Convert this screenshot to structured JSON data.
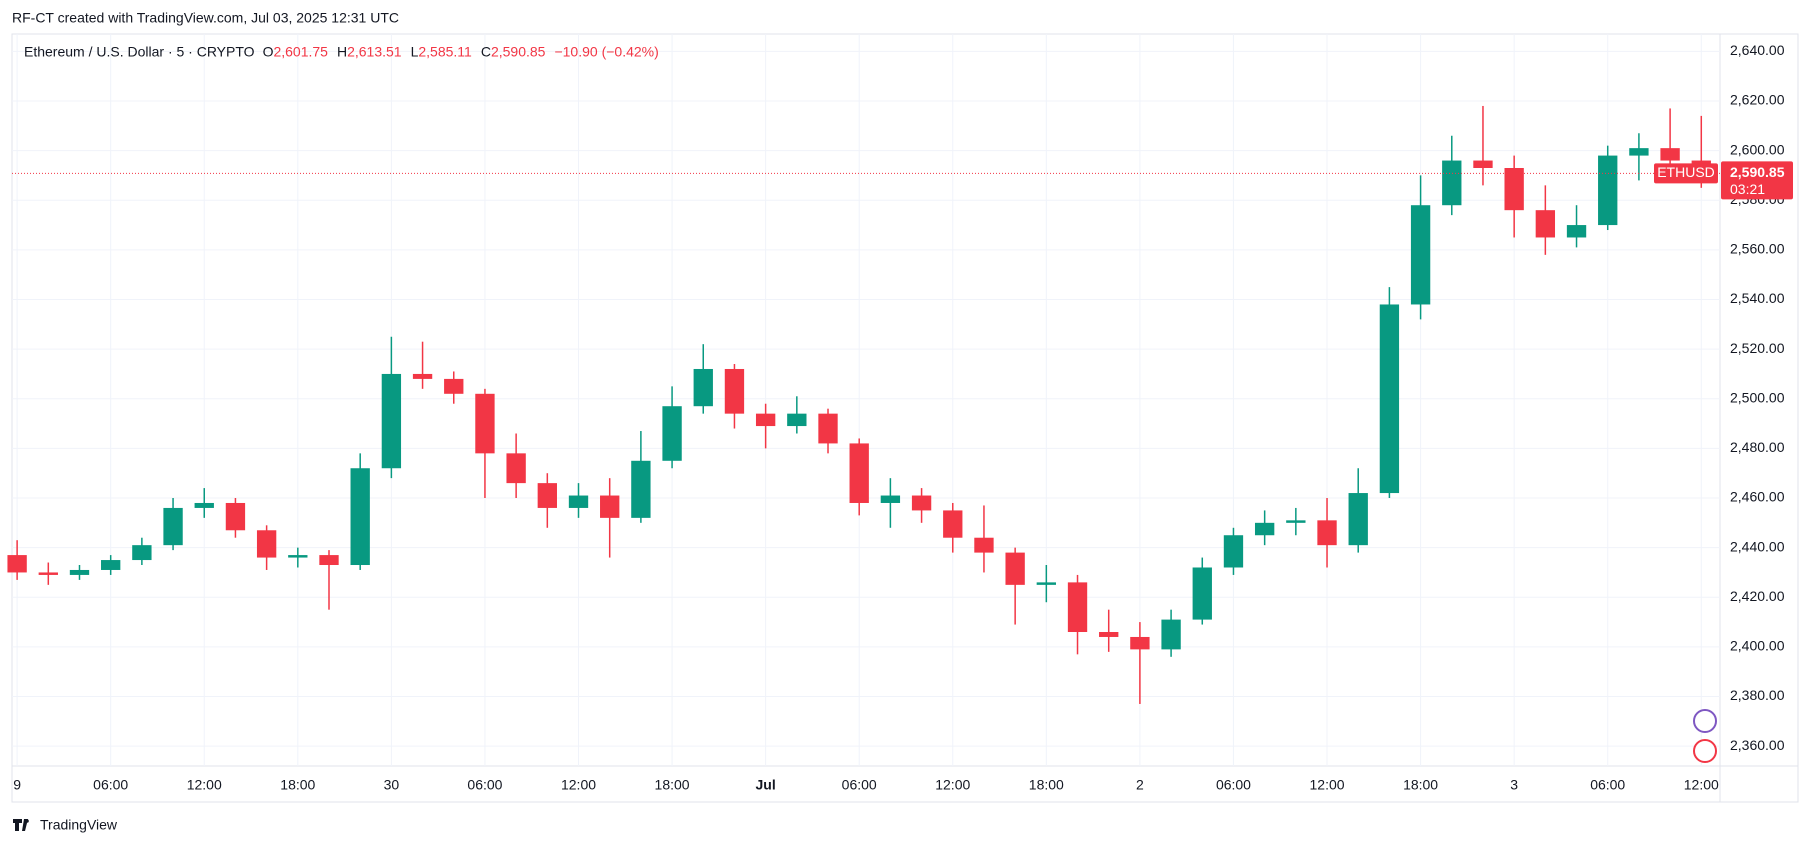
{
  "header": "RF-CT created with TradingView.com, Jul 03, 2025 12:31 UTC",
  "footer": "TradingView",
  "chart_data": {
    "type": "candlestick",
    "title": "Ethereum / U.S. Dollar · 5 · CRYPTO",
    "legend": {
      "O": "2,601.75",
      "H": "2,613.51",
      "L": "2,585.11",
      "C": "2,590.85",
      "change": "−10.90 (−0.42%)"
    },
    "up_color": "#089981",
    "down_color": "#f23645",
    "candles": [
      [
        2437,
        2443,
        2427,
        2430
      ],
      [
        2430,
        2434,
        2425,
        2429
      ],
      [
        2429,
        2433,
        2427,
        2431
      ],
      [
        2431,
        2437,
        2429,
        2435
      ],
      [
        2435,
        2444,
        2433,
        2441
      ],
      [
        2441,
        2460,
        2439,
        2456
      ],
      [
        2456,
        2464,
        2452,
        2458
      ],
      [
        2458,
        2460,
        2444,
        2447
      ],
      [
        2447,
        2449,
        2431,
        2436
      ],
      [
        2436,
        2440,
        2432,
        2437
      ],
      [
        2437,
        2439,
        2415,
        2433
      ],
      [
        2433,
        2478,
        2431,
        2472
      ],
      [
        2472,
        2525,
        2468,
        2510
      ],
      [
        2510,
        2523,
        2504,
        2508
      ],
      [
        2508,
        2511,
        2498,
        2502
      ],
      [
        2502,
        2504,
        2460,
        2478
      ],
      [
        2478,
        2486,
        2460,
        2466
      ],
      [
        2466,
        2470,
        2448,
        2456
      ],
      [
        2456,
        2466,
        2452,
        2461
      ],
      [
        2461,
        2468,
        2436,
        2452
      ],
      [
        2452,
        2487,
        2450,
        2475
      ],
      [
        2475,
        2505,
        2472,
        2497
      ],
      [
        2497,
        2522,
        2494,
        2512
      ],
      [
        2512,
        2514,
        2488,
        2494
      ],
      [
        2494,
        2498,
        2480,
        2489
      ],
      [
        2489,
        2501,
        2486,
        2494
      ],
      [
        2494,
        2496,
        2478,
        2482
      ],
      [
        2482,
        2484,
        2453,
        2458
      ],
      [
        2458,
        2468,
        2448,
        2461
      ],
      [
        2461,
        2464,
        2450,
        2455
      ],
      [
        2455,
        2458,
        2438,
        2444
      ],
      [
        2444,
        2457,
        2430,
        2438
      ],
      [
        2438,
        2440,
        2409,
        2425
      ],
      [
        2425,
        2433,
        2418,
        2426
      ],
      [
        2426,
        2429,
        2397,
        2406
      ],
      [
        2406,
        2415,
        2398,
        2404
      ],
      [
        2404,
        2410,
        2377,
        2399
      ],
      [
        2399,
        2415,
        2396,
        2411
      ],
      [
        2411,
        2436,
        2409,
        2432
      ],
      [
        2432,
        2448,
        2429,
        2445
      ],
      [
        2445,
        2455,
        2441,
        2450
      ],
      [
        2450,
        2456,
        2445,
        2451
      ],
      [
        2451,
        2460,
        2432,
        2441
      ],
      [
        2441,
        2472,
        2438,
        2462
      ],
      [
        2462,
        2545,
        2460,
        2538
      ],
      [
        2538,
        2590,
        2532,
        2578
      ],
      [
        2578,
        2606,
        2574,
        2596
      ],
      [
        2596,
        2618,
        2586,
        2593
      ],
      [
        2593,
        2598,
        2565,
        2576
      ],
      [
        2576,
        2586,
        2558,
        2565
      ],
      [
        2565,
        2578,
        2561,
        2570
      ],
      [
        2570,
        2602,
        2568,
        2598
      ],
      [
        2598,
        2607,
        2588,
        2601
      ],
      [
        2601,
        2617,
        2590,
        2596
      ],
      [
        2596,
        2614,
        2585,
        2591
      ]
    ],
    "xlim": [
      -0.1,
      54.6
    ],
    "xticks": [
      {
        "value": 0,
        "label": "9"
      },
      {
        "value": 3,
        "label": "06:00"
      },
      {
        "value": 6,
        "label": "12:00"
      },
      {
        "value": 9,
        "label": "18:00"
      },
      {
        "value": 12,
        "label": "30"
      },
      {
        "value": 15,
        "label": "06:00"
      },
      {
        "value": 18,
        "label": "12:00"
      },
      {
        "value": 21,
        "label": "18:00"
      },
      {
        "value": 24,
        "label": "Jul"
      },
      {
        "value": 27,
        "label": "06:00"
      },
      {
        "value": 30,
        "label": "12:00"
      },
      {
        "value": 33,
        "label": "18:00"
      },
      {
        "value": 36,
        "label": "2"
      },
      {
        "value": 39,
        "label": "06:00"
      },
      {
        "value": 42,
        "label": "12:00"
      },
      {
        "value": 45,
        "label": "18:00"
      },
      {
        "value": 48,
        "label": "3"
      },
      {
        "value": 51,
        "label": "06:00"
      },
      {
        "value": 54,
        "label": "12:00"
      }
    ],
    "ylim": [
      2352,
      2647
    ],
    "yticks": [
      {
        "value": 2360,
        "label": "2,360.00"
      },
      {
        "value": 2380,
        "label": "2,380.00"
      },
      {
        "value": 2400,
        "label": "2,400.00"
      },
      {
        "value": 2420,
        "label": "2,420.00"
      },
      {
        "value": 2440,
        "label": "2,440.00"
      },
      {
        "value": 2460,
        "label": "2,460.00"
      },
      {
        "value": 2480,
        "label": "2,480.00"
      },
      {
        "value": 2500,
        "label": "2,500.00"
      },
      {
        "value": 2520,
        "label": "2,520.00"
      },
      {
        "value": 2540,
        "label": "2,540.00"
      },
      {
        "value": 2560,
        "label": "2,560.00"
      },
      {
        "value": 2580,
        "label": "2,580.00"
      },
      {
        "value": 2600,
        "label": "2,600.00"
      },
      {
        "value": 2620,
        "label": "2,620.00"
      },
      {
        "value": 2640,
        "label": "2,640.00"
      }
    ],
    "grid": true,
    "current_price": {
      "value": 2590.85,
      "label": "2,590.85",
      "symbol": "ETHUSD",
      "countdown": "03:21",
      "color": "#f23645"
    }
  }
}
